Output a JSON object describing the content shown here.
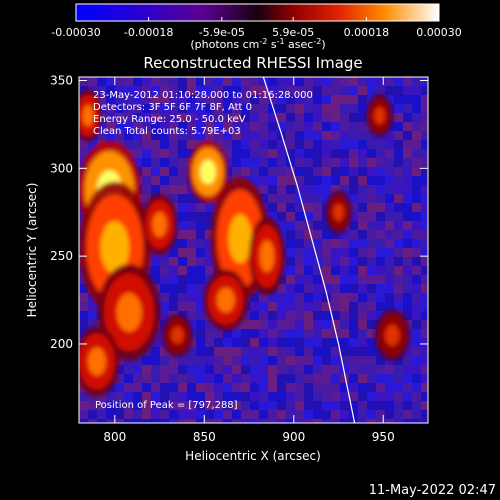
{
  "chart_data": {
    "type": "heatmap",
    "title": "Reconstructed RHESSI Image",
    "xlabel": "Heliocentric X (arcsec)",
    "ylabel": "Heliocentric Y (arcsec)",
    "xlim": [
      780,
      975
    ],
    "ylim": [
      155,
      352
    ],
    "x_ticks": [
      800,
      850,
      900,
      950
    ],
    "y_ticks": [
      200,
      250,
      300,
      350
    ],
    "colorbar": {
      "label_text": "(photons cm",
      "label_exp1": "-2",
      "label_s": " s",
      "label_exp2": "-1",
      "label_asec": " asec",
      "label_exp3": "-2",
      "label_close": ")",
      "range": [
        -0.0003,
        0.0003
      ],
      "ticks": [
        {
          "value": -0.0003,
          "label": "-0.00030"
        },
        {
          "value": -0.00018,
          "label": "-0.00018"
        },
        {
          "value": -5.9e-05,
          "label": "-5.9e-05"
        },
        {
          "value": 5.9e-05,
          "label": "5.9e-05"
        },
        {
          "value": 0.00018,
          "label": "0.00018"
        },
        {
          "value": 0.0003,
          "label": "0.00030"
        }
      ]
    },
    "annotations": [
      "23-May-2012 01:10:28.000 to 01:16:28.000",
      "Detectors: 3F 5F 6F 7F 8F, Att 0",
      "Energy Range: 25.0 - 50.0 keV",
      "Clean     Total counts: 5.79E+03"
    ],
    "peak_label": "Position of Peak = [797,288]",
    "limb_curve": [
      [
        883,
        352
      ],
      [
        893,
        320
      ],
      [
        902,
        290
      ],
      [
        910,
        260
      ],
      [
        918,
        230
      ],
      [
        925,
        200
      ],
      [
        931,
        170
      ],
      [
        934,
        155
      ]
    ],
    "source_blobs": [
      {
        "x": 797,
        "y": 288,
        "rx": 14,
        "ry": 22,
        "level": 1.0
      },
      {
        "x": 800,
        "y": 255,
        "rx": 16,
        "ry": 30,
        "level": 0.85
      },
      {
        "x": 808,
        "y": 218,
        "rx": 14,
        "ry": 22,
        "level": 0.7
      },
      {
        "x": 790,
        "y": 190,
        "rx": 10,
        "ry": 16,
        "level": 0.55
      },
      {
        "x": 825,
        "y": 268,
        "rx": 8,
        "ry": 14,
        "level": 0.6
      },
      {
        "x": 852,
        "y": 298,
        "rx": 9,
        "ry": 14,
        "level": 0.95
      },
      {
        "x": 870,
        "y": 260,
        "rx": 13,
        "ry": 28,
        "level": 0.9
      },
      {
        "x": 862,
        "y": 225,
        "rx": 10,
        "ry": 14,
        "level": 0.6
      },
      {
        "x": 885,
        "y": 250,
        "rx": 8,
        "ry": 18,
        "level": 0.55
      },
      {
        "x": 925,
        "y": 275,
        "rx": 6,
        "ry": 10,
        "level": 0.4
      },
      {
        "x": 955,
        "y": 205,
        "rx": 8,
        "ry": 12,
        "level": 0.45
      },
      {
        "x": 948,
        "y": 330,
        "rx": 6,
        "ry": 10,
        "level": 0.4
      },
      {
        "x": 835,
        "y": 205,
        "rx": 7,
        "ry": 10,
        "level": 0.45
      },
      {
        "x": 785,
        "y": 330,
        "rx": 6,
        "ry": 12,
        "level": 0.55
      }
    ]
  },
  "timestamp": "11-May-2022 02:47"
}
